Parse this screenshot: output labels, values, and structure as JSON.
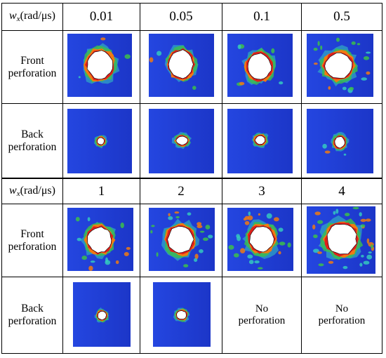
{
  "header_rows": [
    {
      "axis_label": {
        "var": "w",
        "sub": "x",
        "unit": "(rad/μs)"
      },
      "values": [
        "0.01",
        "0.05",
        "0.1",
        "0.5"
      ]
    },
    {
      "axis_label": {
        "var": "w",
        "sub": "x",
        "unit": "(rad/μs)"
      },
      "values": [
        "1",
        "2",
        "3",
        "4"
      ]
    }
  ],
  "row_labels": {
    "front": [
      "Front",
      "perforation"
    ],
    "back": [
      "Back",
      "perforation"
    ]
  },
  "no_perforation": [
    "No",
    "perforation"
  ],
  "colors": {
    "background_plate": "#1f3fd9",
    "hole": "#ffffff",
    "damage_red": "#e0201a",
    "damage_orange": "#f07a12",
    "damage_green": "#3cc04a",
    "damage_cyan": "#34c8c0"
  }
}
